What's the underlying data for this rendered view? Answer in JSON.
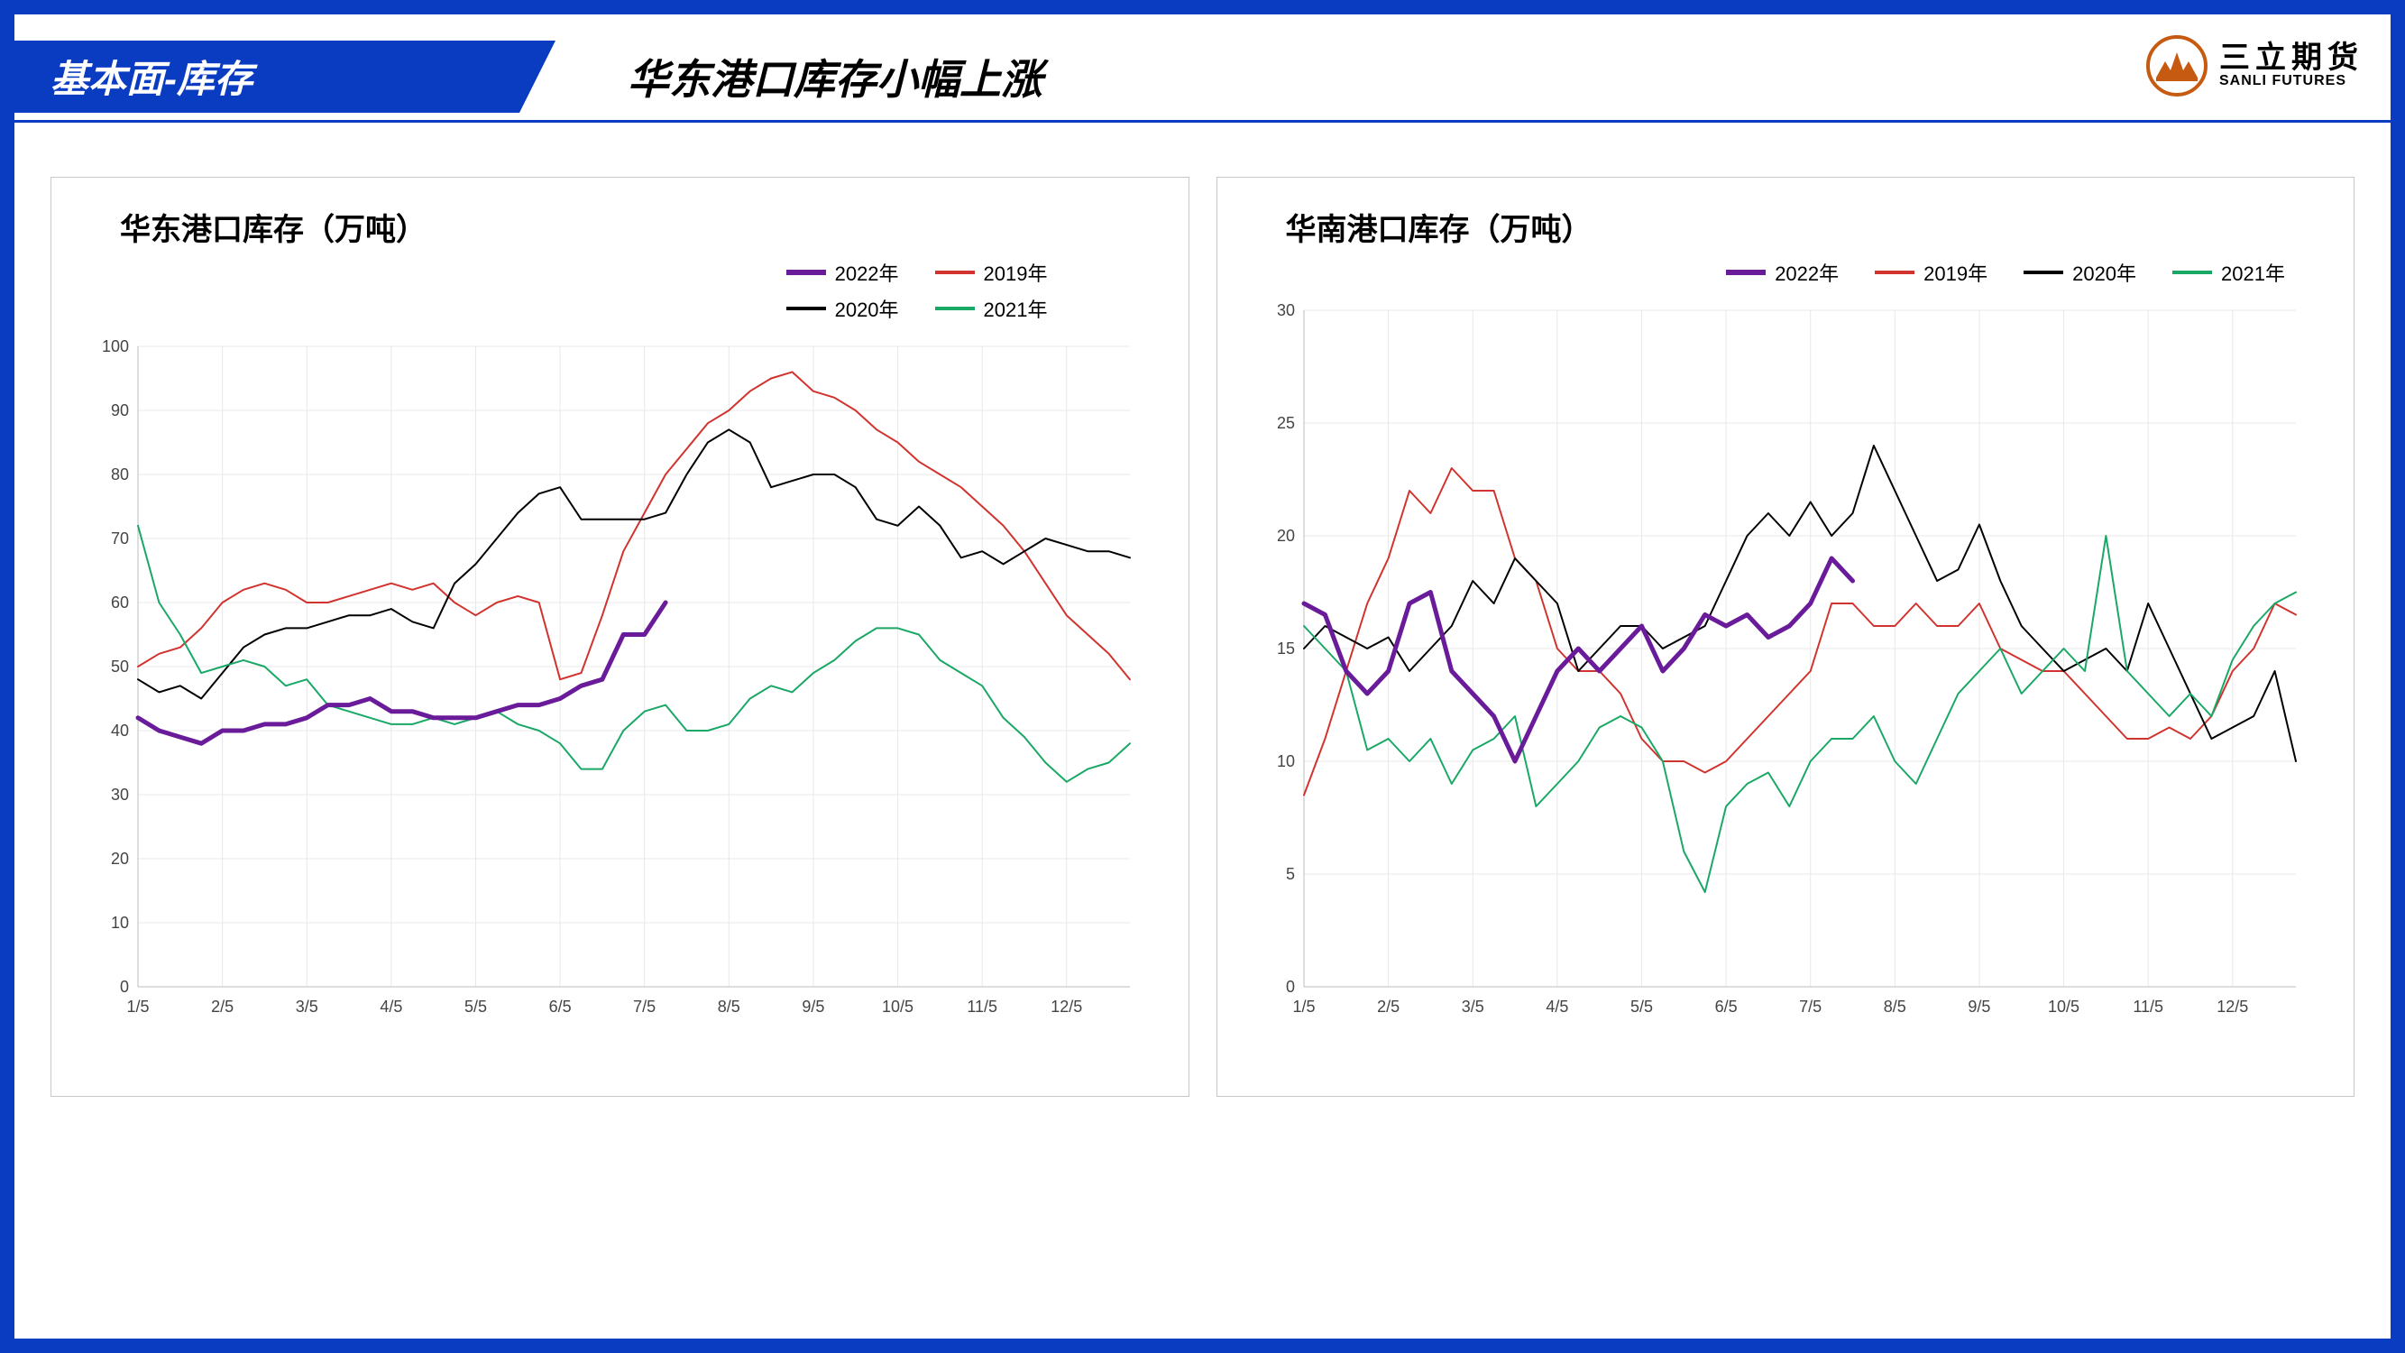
{
  "header": {
    "tab_label": "基本面-库存",
    "main_title": "华东港口库存小幅上涨",
    "brand_cn": "三立期货",
    "brand_en": "SANLI FUTURES",
    "brand_color": "#c65a11"
  },
  "frame_color": "#0a3cc2",
  "x_categories": [
    "1/5",
    "2/5",
    "3/5",
    "4/5",
    "5/5",
    "6/5",
    "7/5",
    "8/5",
    "9/5",
    "10/5",
    "11/5",
    "12/5"
  ],
  "chart1": {
    "title": "华东港口库存（万吨）",
    "ylim": [
      0,
      100
    ],
    "ytick_step": 10,
    "background_color": "#ffffff",
    "grid_color": "#e8e8e8",
    "axis_label_fontsize": 18,
    "title_fontsize": 34,
    "legend": [
      {
        "label": "2022年",
        "color": "#6a1b9a",
        "width": 5
      },
      {
        "label": "2019年",
        "color": "#d1332e",
        "width": 2
      },
      {
        "label": "2020年",
        "color": "#000000",
        "width": 2
      },
      {
        "label": "2021年",
        "color": "#1aa866",
        "width": 2
      }
    ],
    "series": {
      "y2019": [
        50,
        52,
        53,
        56,
        60,
        62,
        63,
        62,
        60,
        60,
        61,
        62,
        63,
        62,
        63,
        60,
        58,
        60,
        61,
        60,
        48,
        49,
        58,
        68,
        74,
        80,
        84,
        88,
        90,
        93,
        95,
        96,
        93,
        92,
        90,
        87,
        85,
        82,
        80,
        78,
        75,
        72,
        68,
        63,
        58,
        55,
        52,
        48
      ],
      "y2020": [
        48,
        46,
        47,
        45,
        49,
        53,
        55,
        56,
        56,
        57,
        58,
        58,
        59,
        57,
        56,
        63,
        66,
        70,
        74,
        77,
        78,
        73,
        73,
        73,
        73,
        74,
        80,
        85,
        87,
        85,
        78,
        79,
        80,
        80,
        78,
        73,
        72,
        75,
        72,
        67,
        68,
        66,
        68,
        70,
        69,
        68,
        68,
        67
      ],
      "y2021": [
        72,
        60,
        55,
        49,
        50,
        51,
        50,
        47,
        48,
        44,
        43,
        42,
        41,
        41,
        42,
        41,
        42,
        43,
        41,
        40,
        38,
        34,
        34,
        40,
        43,
        44,
        40,
        40,
        41,
        45,
        47,
        46,
        49,
        51,
        54,
        56,
        56,
        55,
        51,
        49,
        47,
        42,
        39,
        35,
        32,
        34,
        35,
        38
      ],
      "y2022": [
        42,
        40,
        39,
        38,
        40,
        40,
        41,
        41,
        42,
        44,
        44,
        45,
        43,
        43,
        42,
        42,
        42,
        43,
        44,
        44,
        45,
        47,
        48,
        55,
        55,
        60
      ]
    }
  },
  "chart2": {
    "title": "华南港口库存（万吨）",
    "ylim": [
      0,
      30
    ],
    "ytick_step": 5,
    "background_color": "#ffffff",
    "grid_color": "#e8e8e8",
    "axis_label_fontsize": 18,
    "title_fontsize": 34,
    "legend": [
      {
        "label": "2022年",
        "color": "#6a1b9a",
        "width": 5
      },
      {
        "label": "2019年",
        "color": "#d1332e",
        "width": 2
      },
      {
        "label": "2020年",
        "color": "#000000",
        "width": 2
      },
      {
        "label": "2021年",
        "color": "#1aa866",
        "width": 2
      }
    ],
    "series": {
      "y2019": [
        8.5,
        11,
        14,
        17,
        19,
        22,
        21,
        23,
        22,
        22,
        19,
        18,
        15,
        14,
        14,
        13,
        11,
        10,
        10,
        9.5,
        10,
        11,
        12,
        13,
        14,
        17,
        17,
        16,
        16,
        17,
        16,
        16,
        17,
        15,
        14.5,
        14,
        14,
        13,
        12,
        11,
        11,
        11.5,
        11,
        12,
        14,
        15,
        17,
        16.5
      ],
      "y2020": [
        15,
        16,
        15.5,
        15,
        15.5,
        14,
        15,
        16,
        18,
        17,
        19,
        18,
        17,
        14,
        15,
        16,
        16,
        15,
        15.5,
        16,
        18,
        20,
        21,
        20,
        21.5,
        20,
        21,
        24,
        22,
        20,
        18,
        18.5,
        20.5,
        18,
        16,
        15,
        14,
        14.5,
        15,
        14,
        17,
        15,
        13,
        11,
        11.5,
        12,
        14,
        10
      ],
      "y2021": [
        16,
        15,
        14,
        10.5,
        11,
        10,
        11,
        9,
        10.5,
        11,
        12,
        8,
        9,
        10,
        11.5,
        12,
        11.5,
        10,
        6,
        4.2,
        8,
        9,
        9.5,
        8,
        10,
        11,
        11,
        12,
        10,
        9,
        11,
        13,
        14,
        15,
        13,
        14,
        15,
        14,
        20,
        14,
        13,
        12,
        13,
        12,
        14.5,
        16,
        17,
        17.5
      ],
      "y2022": [
        17,
        16.5,
        14,
        13,
        14,
        17,
        17.5,
        14,
        13,
        12,
        10,
        12,
        14,
        15,
        14,
        15,
        16,
        14,
        15,
        16.5,
        16,
        16.5,
        15.5,
        16,
        17,
        19,
        18
      ]
    }
  }
}
